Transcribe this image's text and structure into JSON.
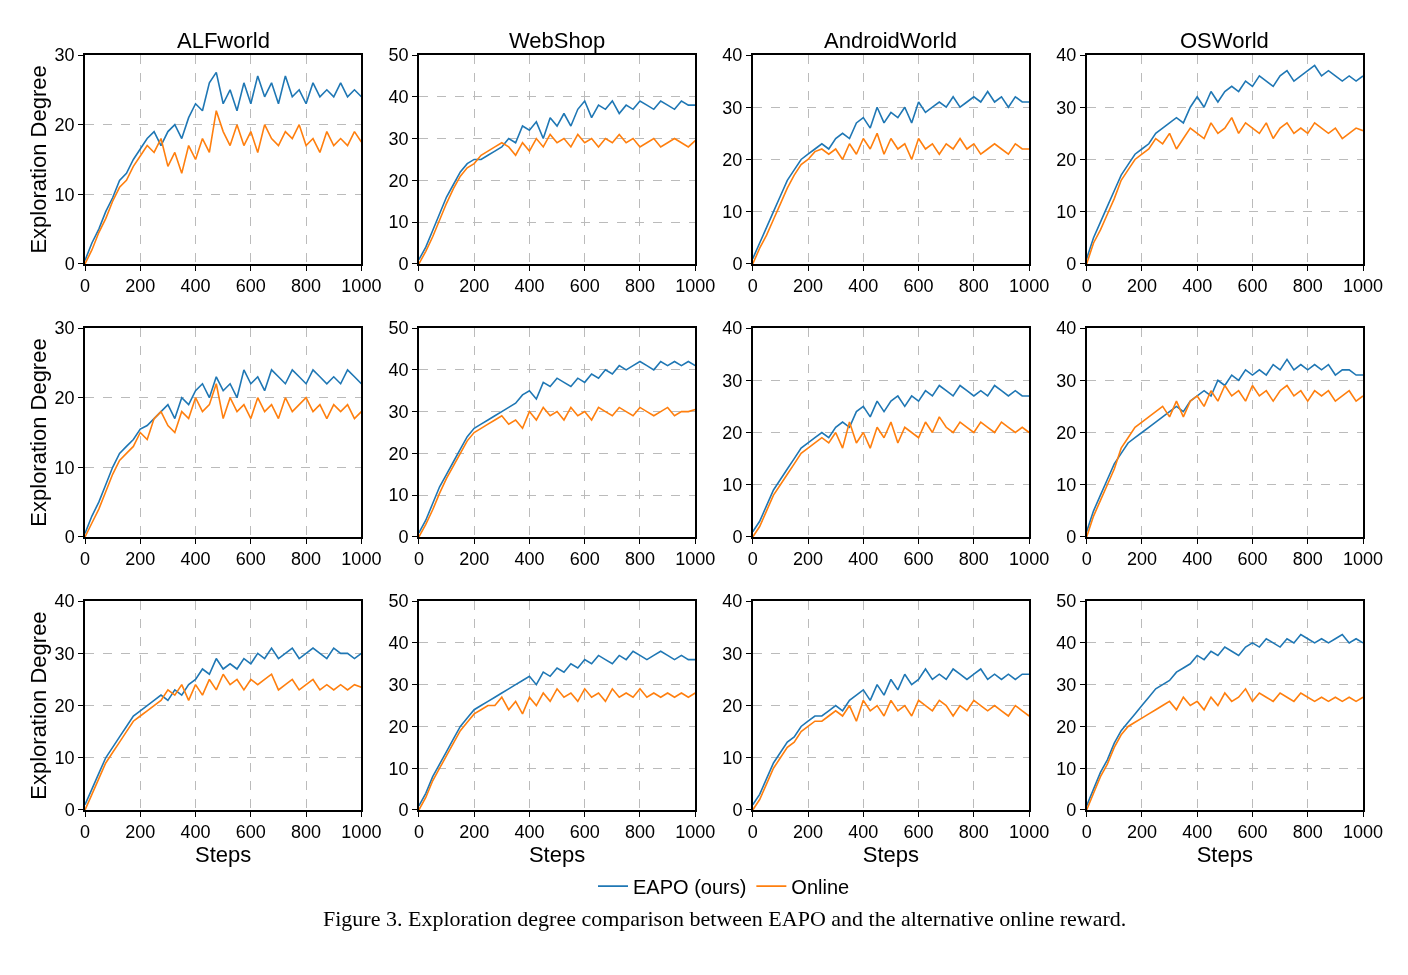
{
  "chart_data": [
    {
      "type": "line",
      "title": "ALFworld",
      "ylabel": "Exploration Degree",
      "xlim": [
        0,
        1000
      ],
      "xticks": [
        0,
        200,
        400,
        600,
        800,
        1000
      ],
      "ylim": [
        0,
        30
      ],
      "yticks": [
        0,
        10,
        20,
        30
      ],
      "grid": true,
      "legend": "bottom",
      "line_style": "solid",
      "x": [
        0,
        25,
        50,
        75,
        100,
        125,
        150,
        175,
        200,
        225,
        250,
        275,
        300,
        325,
        350,
        375,
        400,
        425,
        450,
        475,
        500,
        525,
        550,
        575,
        600,
        625,
        650,
        675,
        700,
        725,
        750,
        775,
        800,
        825,
        850,
        875,
        900,
        925,
        950,
        975,
        1000
      ],
      "series": [
        {
          "name": "EAPO (ours)",
          "color": "#1f77b4",
          "values": [
            0.5,
            3,
            5,
            7.5,
            9.5,
            12,
            13,
            15,
            16.5,
            18,
            19,
            17,
            19,
            20,
            18,
            21,
            23,
            22,
            26,
            27.5,
            23,
            25,
            22,
            26,
            23,
            27,
            24,
            26,
            23,
            27,
            24,
            25,
            23,
            26,
            24,
            25,
            24,
            26,
            24,
            25,
            24
          ]
        },
        {
          "name": "Online",
          "color": "#ff7f0e",
          "values": [
            0,
            2,
            4.5,
            6.5,
            9,
            11,
            12,
            14,
            15.5,
            17,
            16,
            18,
            14,
            16,
            13,
            17,
            15,
            18,
            16,
            22,
            19,
            17,
            20,
            17,
            19,
            16,
            20,
            18,
            17,
            19,
            18,
            20,
            17,
            18,
            16,
            19,
            17,
            18,
            17,
            19,
            17.5
          ]
        }
      ]
    },
    {
      "type": "line",
      "title": "WebShop",
      "xlim": [
        0,
        1000
      ],
      "xticks": [
        0,
        200,
        400,
        600,
        800,
        1000
      ],
      "ylim": [
        0,
        50
      ],
      "yticks": [
        0,
        10,
        20,
        30,
        40,
        50
      ],
      "grid": true,
      "legend": "bottom",
      "line_style": "solid",
      "x": [
        0,
        25,
        50,
        75,
        100,
        125,
        150,
        175,
        200,
        225,
        250,
        275,
        300,
        325,
        350,
        375,
        400,
        425,
        450,
        475,
        500,
        525,
        550,
        575,
        600,
        625,
        650,
        675,
        700,
        725,
        750,
        775,
        800,
        825,
        850,
        875,
        900,
        925,
        950,
        975,
        1000
      ],
      "series": [
        {
          "name": "EAPO (ours)",
          "color": "#1f77b4",
          "values": [
            1,
            4,
            8,
            12,
            16,
            19,
            22,
            24,
            25,
            25,
            26,
            27,
            28,
            30,
            29,
            33,
            32,
            34,
            30,
            35,
            33,
            36,
            33,
            37,
            39,
            35,
            38,
            37,
            39,
            36,
            38,
            37,
            39,
            38,
            37,
            39,
            38,
            37,
            39,
            38,
            38
          ]
        },
        {
          "name": "Online",
          "color": "#ff7f0e",
          "values": [
            0,
            3,
            6.5,
            10.5,
            14.5,
            18,
            21,
            23,
            24,
            26,
            27,
            28,
            29,
            28,
            26,
            29,
            27,
            30,
            28,
            31,
            29,
            30,
            28,
            31,
            29,
            30,
            28,
            30,
            29,
            31,
            29,
            30,
            28,
            29,
            30,
            28,
            29,
            30,
            29,
            28,
            29.5
          ]
        }
      ]
    },
    {
      "type": "line",
      "title": "AndroidWorld",
      "xlim": [
        0,
        1000
      ],
      "xticks": [
        0,
        200,
        400,
        600,
        800,
        1000
      ],
      "ylim": [
        0,
        40
      ],
      "yticks": [
        0,
        10,
        20,
        30,
        40
      ],
      "grid": true,
      "legend": "bottom",
      "line_style": "solid",
      "x": [
        0,
        25,
        50,
        75,
        100,
        125,
        150,
        175,
        200,
        225,
        250,
        275,
        300,
        325,
        350,
        375,
        400,
        425,
        450,
        475,
        500,
        525,
        550,
        575,
        600,
        625,
        650,
        675,
        700,
        725,
        750,
        775,
        800,
        825,
        850,
        875,
        900,
        925,
        950,
        975,
        1000
      ],
      "series": [
        {
          "name": "EAPO (ours)",
          "color": "#1f77b4",
          "values": [
            1,
            4,
            7,
            10,
            13,
            16,
            18,
            20,
            21,
            22,
            23,
            22,
            24,
            25,
            24,
            27,
            28,
            26,
            30,
            27,
            29,
            28,
            30,
            27,
            31,
            29,
            30,
            31,
            30,
            32,
            30,
            31,
            32,
            31,
            33,
            31,
            32,
            30,
            32,
            31,
            31
          ]
        },
        {
          "name": "Online",
          "color": "#ff7f0e",
          "values": [
            0,
            3,
            5.5,
            8.5,
            11.5,
            14.5,
            17,
            19,
            20,
            21.5,
            22,
            21,
            22,
            20,
            23,
            21,
            24,
            22,
            25,
            21,
            24,
            22,
            23,
            20,
            24,
            22,
            23,
            21,
            23,
            22,
            24,
            22,
            23,
            21,
            22,
            23,
            22,
            21,
            23,
            22,
            22
          ]
        }
      ]
    },
    {
      "type": "line",
      "title": "OSWorld",
      "xlim": [
        0,
        1000
      ],
      "xticks": [
        0,
        200,
        400,
        600,
        800,
        1000
      ],
      "ylim": [
        0,
        40
      ],
      "yticks": [
        0,
        10,
        20,
        30,
        40
      ],
      "grid": true,
      "legend": "bottom",
      "line_style": "solid",
      "x": [
        0,
        25,
        50,
        75,
        100,
        125,
        150,
        175,
        200,
        225,
        250,
        275,
        300,
        325,
        350,
        375,
        400,
        425,
        450,
        475,
        500,
        525,
        550,
        575,
        600,
        625,
        650,
        675,
        700,
        725,
        750,
        775,
        800,
        825,
        850,
        875,
        900,
        925,
        950,
        975,
        1000
      ],
      "series": [
        {
          "name": "EAPO (ours)",
          "color": "#1f77b4",
          "values": [
            1,
            5,
            8,
            11,
            14,
            17,
            19,
            21,
            22,
            23,
            25,
            26,
            27,
            28,
            27,
            30,
            32,
            30,
            33,
            31,
            33,
            34,
            33,
            35,
            34,
            36,
            35,
            34,
            36,
            37,
            35,
            36,
            37,
            38,
            36,
            37,
            36,
            35,
            36,
            35,
            36
          ]
        },
        {
          "name": "Online",
          "color": "#ff7f0e",
          "values": [
            0,
            4,
            6.5,
            9.5,
            12.5,
            16,
            18,
            20,
            21,
            22,
            24,
            23,
            25,
            22,
            24,
            26,
            25,
            24,
            27,
            25,
            26,
            28,
            25,
            27,
            26,
            25,
            27,
            24,
            26,
            27,
            25,
            26,
            25,
            27,
            26,
            25,
            26,
            24,
            25,
            26,
            25.5
          ]
        }
      ]
    },
    {
      "type": "line",
      "ylabel": "Exploration Degree",
      "xlim": [
        0,
        1000
      ],
      "xticks": [
        0,
        200,
        400,
        600,
        800,
        1000
      ],
      "ylim": [
        0,
        30
      ],
      "yticks": [
        0,
        10,
        20,
        30
      ],
      "grid": true,
      "legend": "bottom",
      "line_style": "solid",
      "x": [
        0,
        25,
        50,
        75,
        100,
        125,
        150,
        175,
        200,
        225,
        250,
        275,
        300,
        325,
        350,
        375,
        400,
        425,
        450,
        475,
        500,
        525,
        550,
        575,
        600,
        625,
        650,
        675,
        700,
        725,
        750,
        775,
        800,
        825,
        850,
        875,
        900,
        925,
        950,
        975,
        1000
      ],
      "series": [
        {
          "name": "EAPO (ours)",
          "color": "#1f77b4",
          "values": [
            0.5,
            3,
            5,
            7.5,
            10,
            12,
            13,
            14,
            15.5,
            16,
            17,
            18,
            19,
            17,
            20,
            19,
            21,
            22,
            20,
            23,
            21,
            22,
            20,
            24,
            22,
            23,
            21,
            24,
            23,
            22,
            24,
            23,
            22,
            24,
            23,
            22,
            23,
            22,
            24,
            23,
            22
          ]
        },
        {
          "name": "Online",
          "color": "#ff7f0e",
          "values": [
            0,
            2,
            4,
            6.5,
            9,
            11,
            12,
            13,
            15,
            14,
            17,
            18,
            16,
            15,
            18,
            17,
            20,
            18,
            19,
            22,
            17,
            20,
            18,
            19,
            17,
            20,
            18,
            19,
            17,
            20,
            18,
            19,
            20,
            18,
            19,
            17,
            19,
            18,
            19,
            17,
            18
          ]
        }
      ]
    },
    {
      "type": "line",
      "xlim": [
        0,
        1000
      ],
      "xticks": [
        0,
        200,
        400,
        600,
        800,
        1000
      ],
      "ylim": [
        0,
        50
      ],
      "yticks": [
        0,
        10,
        20,
        30,
        40,
        50
      ],
      "grid": true,
      "legend": "bottom",
      "line_style": "solid",
      "x": [
        0,
        25,
        50,
        75,
        100,
        125,
        150,
        175,
        200,
        225,
        250,
        275,
        300,
        325,
        350,
        375,
        400,
        425,
        450,
        475,
        500,
        525,
        550,
        575,
        600,
        625,
        650,
        675,
        700,
        725,
        750,
        775,
        800,
        825,
        850,
        875,
        900,
        925,
        950,
        975,
        1000
      ],
      "series": [
        {
          "name": "EAPO (ours)",
          "color": "#1f77b4",
          "values": [
            1,
            4,
            8,
            12,
            15,
            18,
            21,
            24,
            26,
            27,
            28,
            29,
            30,
            31,
            32,
            34,
            35,
            33,
            37,
            36,
            38,
            37,
            36,
            38,
            37,
            39,
            38,
            40,
            39,
            41,
            40,
            41,
            42,
            41,
            40,
            42,
            41,
            42,
            41,
            42,
            41
          ]
        },
        {
          "name": "Online",
          "color": "#ff7f0e",
          "values": [
            0,
            3,
            6.5,
            10.5,
            14,
            17,
            20,
            23,
            25,
            26,
            27,
            28,
            29,
            27,
            28,
            26,
            30,
            28,
            31,
            29,
            30,
            28,
            31,
            29,
            30,
            28,
            31,
            30,
            29,
            31,
            30,
            29,
            31,
            30,
            29,
            30,
            31,
            29,
            30,
            30,
            30.5
          ]
        }
      ]
    },
    {
      "type": "line",
      "xlim": [
        0,
        1000
      ],
      "xticks": [
        0,
        200,
        400,
        600,
        800,
        1000
      ],
      "ylim": [
        0,
        40
      ],
      "yticks": [
        0,
        10,
        20,
        30,
        40
      ],
      "grid": true,
      "legend": "bottom",
      "line_style": "solid",
      "x": [
        0,
        25,
        50,
        75,
        100,
        125,
        150,
        175,
        200,
        225,
        250,
        275,
        300,
        325,
        350,
        375,
        400,
        425,
        450,
        475,
        500,
        525,
        550,
        575,
        600,
        625,
        650,
        675,
        700,
        725,
        750,
        775,
        800,
        825,
        850,
        875,
        900,
        925,
        950,
        975,
        1000
      ],
      "series": [
        {
          "name": "EAPO (ours)",
          "color": "#1f77b4",
          "values": [
            1,
            3,
            6,
            9,
            11,
            13,
            15,
            17,
            18,
            19,
            20,
            19,
            21,
            22,
            21,
            24,
            25,
            23,
            26,
            24,
            26,
            27,
            25,
            27,
            26,
            28,
            27,
            29,
            28,
            27,
            29,
            28,
            27,
            28,
            27,
            29,
            28,
            27,
            28,
            27,
            27
          ]
        },
        {
          "name": "Online",
          "color": "#ff7f0e",
          "values": [
            0,
            2,
            5,
            8,
            10,
            12,
            14,
            16,
            17,
            18,
            19,
            18,
            20,
            17,
            22,
            18,
            20,
            17,
            21,
            19,
            22,
            18,
            21,
            20,
            19,
            22,
            20,
            23,
            21,
            20,
            22,
            21,
            20,
            22,
            21,
            20,
            22,
            21,
            20,
            21,
            20
          ]
        }
      ]
    },
    {
      "type": "line",
      "xlim": [
        0,
        1000
      ],
      "xticks": [
        0,
        200,
        400,
        600,
        800,
        1000
      ],
      "ylim": [
        0,
        40
      ],
      "yticks": [
        0,
        10,
        20,
        30,
        40
      ],
      "grid": true,
      "legend": "bottom",
      "line_style": "solid",
      "x": [
        0,
        25,
        50,
        75,
        100,
        125,
        150,
        175,
        200,
        225,
        250,
        275,
        300,
        325,
        350,
        375,
        400,
        425,
        450,
        475,
        500,
        525,
        550,
        575,
        600,
        625,
        650,
        675,
        700,
        725,
        750,
        775,
        800,
        825,
        850,
        875,
        900,
        925,
        950,
        975,
        1000
      ],
      "series": [
        {
          "name": "EAPO (ours)",
          "color": "#1f77b4",
          "values": [
            1,
            5,
            8,
            11,
            14,
            16,
            18,
            19,
            20,
            21,
            22,
            23,
            24,
            25,
            24,
            26,
            27,
            28,
            27,
            30,
            29,
            31,
            30,
            32,
            31,
            32,
            31,
            33,
            32,
            34,
            32,
            33,
            32,
            33,
            32,
            33,
            31,
            32,
            32,
            31,
            31
          ]
        },
        {
          "name": "Online",
          "color": "#ff7f0e",
          "values": [
            0,
            4,
            7,
            10,
            13,
            17,
            19,
            21,
            22,
            23,
            24,
            25,
            23,
            26,
            23,
            26,
            27,
            25,
            28,
            26,
            29,
            27,
            28,
            26,
            29,
            27,
            28,
            26,
            28,
            29,
            27,
            28,
            26,
            28,
            27,
            28,
            26,
            27,
            28,
            26,
            27
          ]
        }
      ]
    },
    {
      "type": "line",
      "ylabel": "Exploration Degree",
      "xlabel": "Steps",
      "xlim": [
        0,
        1000
      ],
      "xticks": [
        0,
        200,
        400,
        600,
        800,
        1000
      ],
      "ylim": [
        0,
        40
      ],
      "yticks": [
        0,
        10,
        20,
        30,
        40
      ],
      "grid": true,
      "legend": "bottom",
      "line_style": "solid",
      "x": [
        0,
        25,
        50,
        75,
        100,
        125,
        150,
        175,
        200,
        225,
        250,
        275,
        300,
        325,
        350,
        375,
        400,
        425,
        450,
        475,
        500,
        525,
        550,
        575,
        600,
        625,
        650,
        675,
        700,
        725,
        750,
        775,
        800,
        825,
        850,
        875,
        900,
        925,
        950,
        975,
        1000
      ],
      "series": [
        {
          "name": "EAPO (ours)",
          "color": "#1f77b4",
          "values": [
            1,
            4,
            7,
            10,
            12,
            14,
            16,
            18,
            19,
            20,
            21,
            22,
            21,
            23,
            22,
            24,
            25,
            27,
            26,
            29,
            27,
            28,
            27,
            29,
            28,
            30,
            29,
            31,
            29,
            30,
            31,
            29,
            30,
            31,
            30,
            29,
            31,
            30,
            30,
            29,
            30
          ]
        },
        {
          "name": "Online",
          "color": "#ff7f0e",
          "values": [
            0,
            3,
            6,
            9,
            11,
            13,
            15,
            17,
            18,
            19,
            20,
            21,
            23,
            22,
            24,
            21,
            24,
            22,
            25,
            23,
            26,
            24,
            25,
            23,
            25,
            24,
            25,
            26,
            23,
            24,
            25,
            23,
            24,
            25,
            23,
            24,
            23,
            24,
            23,
            24,
            23.5
          ]
        }
      ]
    },
    {
      "type": "line",
      "xlabel": "Steps",
      "xlim": [
        0,
        1000
      ],
      "xticks": [
        0,
        200,
        400,
        600,
        800,
        1000
      ],
      "ylim": [
        0,
        50
      ],
      "yticks": [
        0,
        10,
        20,
        30,
        40,
        50
      ],
      "grid": true,
      "legend": "bottom",
      "line_style": "solid",
      "x": [
        0,
        25,
        50,
        75,
        100,
        125,
        150,
        175,
        200,
        225,
        250,
        275,
        300,
        325,
        350,
        375,
        400,
        425,
        450,
        475,
        500,
        525,
        550,
        575,
        600,
        625,
        650,
        675,
        700,
        725,
        750,
        775,
        800,
        825,
        850,
        875,
        900,
        925,
        950,
        975,
        1000
      ],
      "series": [
        {
          "name": "EAPO (ours)",
          "color": "#1f77b4",
          "values": [
            1,
            4,
            8,
            11,
            14,
            17,
            20,
            22,
            24,
            25,
            26,
            27,
            28,
            29,
            30,
            31,
            32,
            30,
            33,
            32,
            34,
            33,
            35,
            34,
            36,
            35,
            37,
            36,
            35,
            37,
            36,
            38,
            37,
            36,
            37,
            38,
            37,
            36,
            37,
            36,
            36
          ]
        },
        {
          "name": "Online",
          "color": "#ff7f0e",
          "values": [
            0,
            3,
            7,
            10,
            13,
            16,
            19,
            21,
            23,
            24,
            25,
            25,
            27,
            24,
            26,
            23,
            27,
            25,
            28,
            26,
            29,
            27,
            28,
            26,
            29,
            27,
            28,
            26,
            29,
            27,
            28,
            27,
            29,
            27,
            28,
            27,
            28,
            27,
            28,
            27,
            28
          ]
        }
      ]
    },
    {
      "type": "line",
      "xlabel": "Steps",
      "xlim": [
        0,
        1000
      ],
      "xticks": [
        0,
        200,
        400,
        600,
        800,
        1000
      ],
      "ylim": [
        0,
        40
      ],
      "yticks": [
        0,
        10,
        20,
        30,
        40
      ],
      "grid": true,
      "legend": "bottom",
      "line_style": "solid",
      "x": [
        0,
        25,
        50,
        75,
        100,
        125,
        150,
        175,
        200,
        225,
        250,
        275,
        300,
        325,
        350,
        375,
        400,
        425,
        450,
        475,
        500,
        525,
        550,
        575,
        600,
        625,
        650,
        675,
        700,
        725,
        750,
        775,
        800,
        825,
        850,
        875,
        900,
        925,
        950,
        975,
        1000
      ],
      "series": [
        {
          "name": "EAPO (ours)",
          "color": "#1f77b4",
          "values": [
            1,
            3,
            6,
            9,
            11,
            13,
            14,
            16,
            17,
            18,
            18,
            19,
            20,
            19,
            21,
            22,
            23,
            21,
            24,
            22,
            25,
            23,
            26,
            24,
            25,
            27,
            25,
            26,
            25,
            27,
            26,
            25,
            26,
            27,
            25,
            26,
            25,
            26,
            25,
            26,
            26
          ]
        },
        {
          "name": "Online",
          "color": "#ff7f0e",
          "values": [
            0,
            2,
            5,
            8,
            10,
            12,
            13,
            15,
            16,
            17,
            17,
            18,
            19,
            18,
            20,
            17,
            21,
            19,
            20,
            18,
            21,
            19,
            20,
            18,
            21,
            20,
            19,
            21,
            20,
            18,
            20,
            19,
            21,
            20,
            19,
            20,
            19,
            18,
            20,
            19,
            18
          ]
        }
      ]
    },
    {
      "type": "line",
      "xlabel": "Steps",
      "xlim": [
        0,
        1000
      ],
      "xticks": [
        0,
        200,
        400,
        600,
        800,
        1000
      ],
      "ylim": [
        0,
        50
      ],
      "yticks": [
        0,
        10,
        20,
        30,
        40,
        50
      ],
      "grid": true,
      "legend": "bottom",
      "line_style": "solid",
      "annotations": [
        "Figure 3. Exploration degree comparison between EAPO and the alternative online reward."
      ],
      "x": [
        0,
        25,
        50,
        75,
        100,
        125,
        150,
        175,
        200,
        225,
        250,
        275,
        300,
        325,
        350,
        375,
        400,
        425,
        450,
        475,
        500,
        525,
        550,
        575,
        600,
        625,
        650,
        675,
        700,
        725,
        750,
        775,
        800,
        825,
        850,
        875,
        900,
        925,
        950,
        975,
        1000
      ],
      "series": [
        {
          "name": "EAPO (ours)",
          "color": "#1f77b4",
          "values": [
            1,
            5,
            9,
            12,
            16,
            19,
            21,
            23,
            25,
            27,
            29,
            30,
            31,
            33,
            34,
            35,
            37,
            36,
            38,
            37,
            39,
            38,
            37,
            39,
            40,
            39,
            41,
            40,
            39,
            41,
            40,
            42,
            41,
            40,
            41,
            40,
            41,
            42,
            40,
            41,
            40
          ]
        },
        {
          "name": "Online",
          "color": "#ff7f0e",
          "values": [
            0,
            4,
            8,
            11,
            15,
            18,
            20,
            21,
            22,
            23,
            24,
            25,
            26,
            24,
            27,
            25,
            26,
            24,
            27,
            25,
            28,
            26,
            27,
            29,
            26,
            28,
            27,
            26,
            28,
            27,
            26,
            28,
            27,
            26,
            27,
            26,
            27,
            26,
            27,
            26,
            27
          ]
        }
      ]
    }
  ]
}
